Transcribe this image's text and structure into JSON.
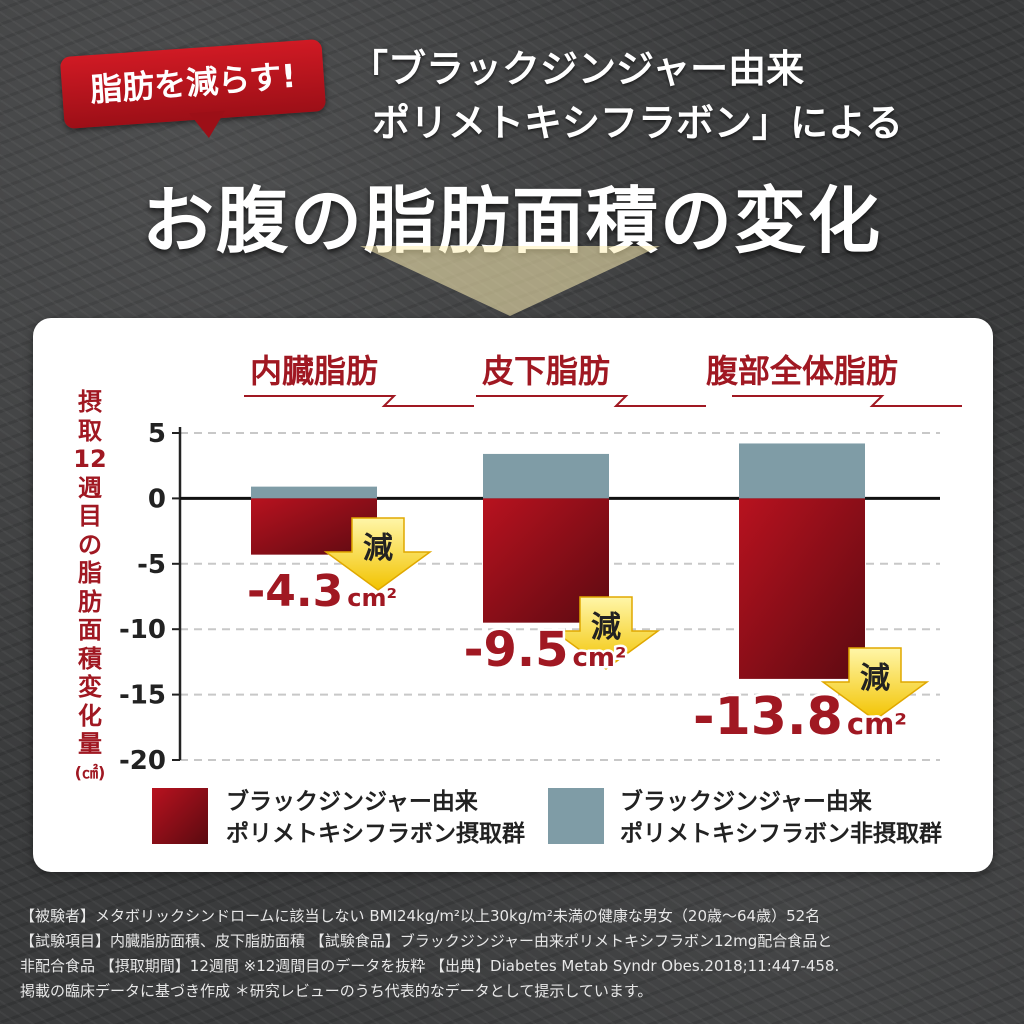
{
  "badge": {
    "text": "脂肪を減らす!"
  },
  "subtitle": {
    "line1": "「ブラックジンジャー由来",
    "line2": "ポリメトキシフラボン」による"
  },
  "title": "お腹の脂肪面積の変化",
  "ylabel_chars": [
    "摂",
    "取",
    "12",
    "週",
    "目",
    "の",
    "脂",
    "肪",
    "面",
    "積",
    "変",
    "化",
    "量",
    "(㎠)"
  ],
  "reduce_word": "減",
  "colors": {
    "taken": "#b8121f",
    "not_taken": "#7f9ca6",
    "arrow": "#f2c300",
    "label": "#a01822"
  },
  "legend": {
    "taken": {
      "line1": "ブラックジンジャー由来",
      "line2": "ポリメトキシフラボン摂取群"
    },
    "not_taken": {
      "line1": "ブラックジンジャー由来",
      "line2": "ポリメトキシフラボン非摂取群"
    }
  },
  "chart_data": {
    "type": "bar",
    "categories": [
      "内臓脂肪",
      "皮下脂肪",
      "腹部全体脂肪"
    ],
    "series": [
      {
        "name": "ブラックジンジャー由来ポリメトキシフラボン摂取群",
        "values": [
          -4.3,
          -9.5,
          -13.8
        ]
      },
      {
        "name": "ブラックジンジャー由来ポリメトキシフラボン非摂取群",
        "values": [
          0.9,
          3.4,
          4.2
        ]
      }
    ],
    "value_labels": [
      {
        "num": "-4.3",
        "unit": "cm²"
      },
      {
        "num": "-9.5",
        "unit": "cm²"
      },
      {
        "num": "-13.8",
        "unit": "cm²"
      }
    ],
    "yticks": [
      "5",
      "0",
      "-5",
      "-10",
      "-15",
      "-20"
    ],
    "ylim": [
      -20,
      5
    ],
    "grid": true
  },
  "footnote": {
    "line1": "【被験者】メタボリックシンドロームに該当しない BMI24kg/m²以上30kg/m²未満の健康な男女（20歳～64歳）52名",
    "line2": "【試験項目】内臓脂肪面積、皮下脂肪面積 【試験食品】ブラックジンジャー由来ポリメトキシフラボン12mg配合食品と",
    "line3": "非配合食品 【摂取期間】12週間 ※12週間目のデータを抜粋 【出典】Diabetes Metab Syndr Obes.2018;11:447-458.",
    "line4": "掲載の臨床データに基づき作成 ＊研究レビューのうち代表的なデータとして提示しています。"
  }
}
